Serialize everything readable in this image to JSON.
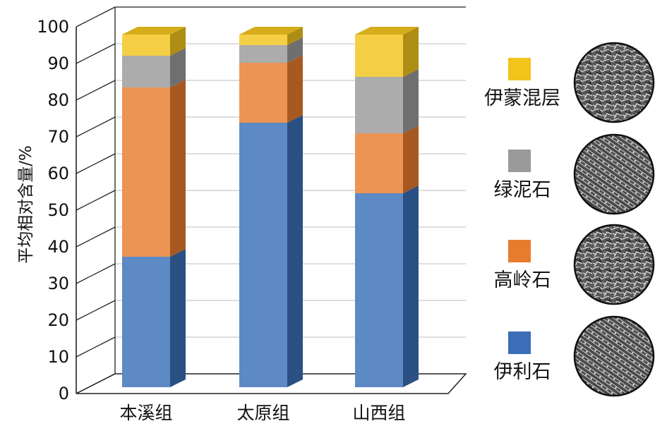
{
  "chart_data": {
    "type": "bar",
    "stacked": true,
    "style": "3d",
    "ylabel": "平均相对含量/%",
    "ylim": [
      0,
      100
    ],
    "yticks": [
      0,
      10,
      20,
      30,
      40,
      50,
      60,
      70,
      80,
      90,
      100
    ],
    "grid": true,
    "categories": [
      "本溪组",
      "太原组",
      "山西组"
    ],
    "series": [
      {
        "name": "伊利石",
        "color": "#3a6fb7",
        "values": [
          37,
          75,
          55
        ]
      },
      {
        "name": "高岭石",
        "color": "#e87c2e",
        "values": [
          48,
          17,
          17
        ]
      },
      {
        "name": "绿泥石",
        "color": "#9a9a9a",
        "values": [
          9,
          5,
          16
        ]
      },
      {
        "name": "伊蒙混层",
        "color": "#f2c41c",
        "values": [
          6,
          3,
          12
        ]
      }
    ],
    "legend_position": "right",
    "legend_images": [
      "sem-micrograph",
      "sem-micrograph",
      "sem-micrograph",
      "sem-micrograph"
    ]
  }
}
